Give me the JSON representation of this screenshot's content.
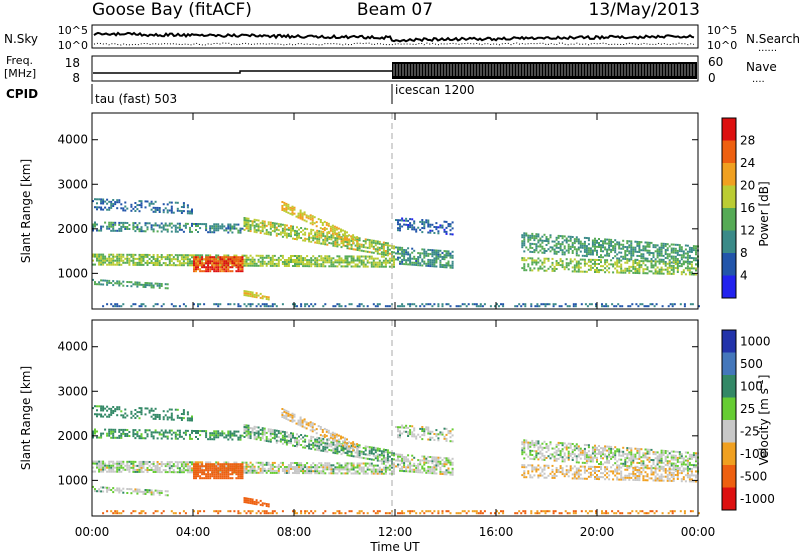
{
  "header": {
    "station": "Goose Bay (fitACF)",
    "beam": "Beam 07",
    "date": "13/May/2013"
  },
  "panels": {
    "nsky": {
      "left_label": "N.Sky",
      "right_label": "N.Search",
      "left_ticks": [
        "10^5",
        "10^0"
      ],
      "right_ticks": [
        "10^5",
        "10^0"
      ],
      "right_legend_dots": "......"
    },
    "freq": {
      "left_label_1": "Freq.",
      "left_label_2": "[MHz]",
      "right_label": "Nave",
      "left_ticks": [
        "18",
        "8"
      ],
      "right_ticks": [
        "60",
        "0"
      ],
      "right_legend_dots": "...."
    },
    "cpid": {
      "label": "CPID",
      "programs": [
        {
          "name": "tau (fast) 503",
          "start_hour": 0
        },
        {
          "name": "icescan 1200",
          "start_hour": 12
        }
      ]
    }
  },
  "y_axis": {
    "label": "Slant Range [km]",
    "ticks": [
      "1000",
      "2000",
      "3000",
      "4000"
    ]
  },
  "x_axis": {
    "label": "Time UT",
    "ticks": [
      "00:00",
      "04:00",
      "08:00",
      "12:00",
      "16:00",
      "20:00",
      "00:00"
    ]
  },
  "colorbars": {
    "power": {
      "label": "Power [dB]",
      "ticks": [
        "4",
        "8",
        "12",
        "16",
        "20",
        "24",
        "28"
      ],
      "colors": [
        "#2222ee",
        "#2255aa",
        "#3a8a88",
        "#55aa55",
        "#bbcc33",
        "#f0a020",
        "#ee6010",
        "#dd1010"
      ]
    },
    "velocity": {
      "label": "Velocity [m s",
      "label_sup": "-1",
      "label_end": "]",
      "ticks": [
        "1000",
        "500",
        "100",
        "25",
        "-25",
        "-100",
        "-500",
        "-1000"
      ],
      "colors": [
        "#2233aa",
        "#4477bb",
        "#338866",
        "#66cc33",
        "#c8c8c8",
        "#f0a020",
        "#ee6010",
        "#dd1010"
      ]
    }
  },
  "chart_data": {
    "type": "heatmap",
    "title": "Goose Bay (fitACF)  Beam 07  13/May/2013",
    "xlabel": "Time UT",
    "ylabel": "Slant Range [km]",
    "x_unit": "hours UT",
    "xlim": [
      0,
      24
    ],
    "ylim": [
      200,
      4600
    ],
    "scatter_bands": [
      {
        "name": "band-a",
        "t_start": 0,
        "t_end": 12,
        "range_start": 1300,
        "range_end": 1250,
        "width": 250,
        "density": 0.75,
        "power": 16,
        "velocity": 0
      },
      {
        "name": "band-b",
        "t_start": 0,
        "t_end": 6,
        "range_start": 2050,
        "range_end": 2000,
        "width": 220,
        "density": 0.55,
        "power": 10,
        "velocity": 40
      },
      {
        "name": "band-c",
        "t_start": 0,
        "t_end": 4,
        "range_start": 2550,
        "range_end": 2450,
        "width": 260,
        "density": 0.35,
        "power": 8,
        "velocity": 50
      },
      {
        "name": "band-d",
        "t_start": 0,
        "t_end": 3,
        "range_start": 800,
        "range_end": 700,
        "width": 120,
        "density": 0.6,
        "power": 12,
        "velocity": 0
      },
      {
        "name": "band-e",
        "t_start": 4,
        "t_end": 6,
        "range_start": 1200,
        "range_end": 1200,
        "width": 350,
        "density": 0.9,
        "power": 27,
        "velocity": -300
      },
      {
        "name": "band-f",
        "t_start": 6,
        "t_end": 12,
        "range_start": 2100,
        "range_end": 1500,
        "width": 300,
        "density": 0.7,
        "power": 17,
        "velocity": 20
      },
      {
        "name": "band-g",
        "t_start": 7.5,
        "t_end": 10.5,
        "range_start": 2500,
        "range_end": 1700,
        "width": 200,
        "density": 0.7,
        "power": 20,
        "velocity": -20
      },
      {
        "name": "band-h",
        "t_start": 6,
        "t_end": 7,
        "range_start": 550,
        "range_end": 450,
        "width": 120,
        "density": 0.7,
        "power": 20,
        "velocity": -150
      },
      {
        "name": "band-i",
        "t_start": 12,
        "t_end": 14.3,
        "range_start": 1400,
        "range_end": 1300,
        "width": 400,
        "density": 0.65,
        "power": 11,
        "velocity": 0
      },
      {
        "name": "band-j",
        "t_start": 12,
        "t_end": 14.3,
        "range_start": 2100,
        "range_end": 2000,
        "width": 300,
        "density": 0.4,
        "power": 7,
        "velocity": 0
      },
      {
        "name": "band-k",
        "t_start": 17,
        "t_end": 24,
        "range_start": 1700,
        "range_end": 1400,
        "width": 450,
        "density": 0.6,
        "power": 12,
        "velocity": 0
      },
      {
        "name": "band-l",
        "t_start": 17,
        "t_end": 24,
        "range_start": 1200,
        "range_end": 1100,
        "width": 300,
        "density": 0.55,
        "power": 16,
        "velocity": -20
      },
      {
        "name": "band-m",
        "t_start": 0,
        "t_end": 24,
        "range_start": 280,
        "range_end": 280,
        "width": 80,
        "density": 0.35,
        "power": 8,
        "velocity": -100
      }
    ]
  }
}
